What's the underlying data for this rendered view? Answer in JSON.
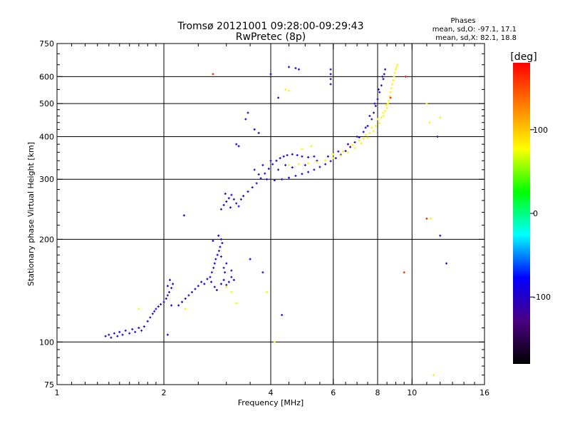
{
  "chart_data": {
    "type": "scatter",
    "title": "Tromsø 20121001 09:28:00-09:29:43",
    "subtitle": "RwPretec (8p)",
    "xlabel": "Frequency [MHz]",
    "ylabel": "Stationary phase Virtual Height [km]",
    "x_scale": "log",
    "y_scale": "log",
    "xlim": [
      1,
      16
    ],
    "ylim": [
      75,
      750
    ],
    "grid": true,
    "x_ticks": [
      1,
      2,
      4,
      6,
      8,
      10,
      16
    ],
    "x_tick_labels": [
      "1",
      "2",
      "4",
      "6",
      "8",
      "10",
      "16"
    ],
    "x_gridlines": [
      2,
      4,
      6,
      8,
      10
    ],
    "y_ticks": [
      75,
      100,
      200,
      300,
      400,
      500,
      600,
      750
    ],
    "y_tick_labels": [
      "75",
      "100",
      "200",
      "300",
      "400",
      "500",
      "600",
      "750"
    ],
    "y_gridlines": [
      100,
      200,
      300,
      400,
      500,
      600
    ],
    "stats": {
      "heading": "Phases",
      "o_line": "mean, sd,O: -97.1, 17.1",
      "x_line": "mean, sd,X:  82.1, 18.8"
    },
    "colorbar": {
      "label": "[deg]",
      "range": [
        -180,
        180
      ],
      "ticks": [
        -100,
        0,
        100
      ],
      "tick_labels": [
        "-100",
        "0",
        "100"
      ],
      "colors": [
        "#000000",
        "#4b0082",
        "#0000ff",
        "#00ffff",
        "#00ff00",
        "#ffff00",
        "#ff7f00",
        "#ff0000"
      ]
    },
    "series": [
      {
        "mode": "O",
        "color_phase": -97,
        "points": [
          [
            1.37,
            104
          ],
          [
            1.4,
            105
          ],
          [
            1.42,
            103
          ],
          [
            1.45,
            106
          ],
          [
            1.48,
            104
          ],
          [
            1.5,
            107
          ],
          [
            1.53,
            105
          ],
          [
            1.56,
            108
          ],
          [
            1.6,
            106
          ],
          [
            1.63,
            109
          ],
          [
            1.66,
            107
          ],
          [
            1.7,
            110
          ],
          [
            1.73,
            108
          ],
          [
            1.76,
            111
          ],
          [
            1.8,
            115
          ],
          [
            1.83,
            118
          ],
          [
            1.86,
            121
          ],
          [
            1.88,
            123
          ],
          [
            1.9,
            125
          ],
          [
            1.93,
            127
          ],
          [
            1.96,
            129
          ],
          [
            2.0,
            131
          ],
          [
            2.03,
            134
          ],
          [
            2.05,
            137
          ],
          [
            2.07,
            140
          ],
          [
            2.1,
            144
          ],
          [
            2.12,
            148
          ],
          [
            2.08,
            152
          ],
          [
            2.05,
            146
          ],
          [
            2.1,
            128
          ],
          [
            2.2,
            128
          ],
          [
            2.25,
            131
          ],
          [
            2.3,
            134
          ],
          [
            2.35,
            137
          ],
          [
            2.4,
            140
          ],
          [
            2.45,
            143
          ],
          [
            2.5,
            146
          ],
          [
            2.55,
            150
          ],
          [
            2.6,
            148
          ],
          [
            2.65,
            153
          ],
          [
            2.7,
            155
          ],
          [
            2.73,
            160
          ],
          [
            2.76,
            165
          ],
          [
            2.78,
            170
          ],
          [
            2.8,
            175
          ],
          [
            2.83,
            180
          ],
          [
            2.86,
            185
          ],
          [
            2.88,
            190
          ],
          [
            2.75,
            198
          ],
          [
            2.9,
            200
          ],
          [
            2.92,
            195
          ],
          [
            2.85,
            205
          ],
          [
            2.72,
            150
          ],
          [
            2.78,
            145
          ],
          [
            2.82,
            142
          ],
          [
            2.9,
            148
          ],
          [
            2.95,
            152
          ],
          [
            3.0,
            147
          ],
          [
            3.05,
            150
          ],
          [
            3.1,
            155
          ],
          [
            3.15,
            152
          ],
          [
            2.95,
            165
          ],
          [
            3.0,
            170
          ],
          [
            2.9,
            178
          ],
          [
            3.1,
            162
          ],
          [
            2.97,
            160
          ],
          [
            2.9,
            245
          ],
          [
            2.95,
            252
          ],
          [
            3.0,
            258
          ],
          [
            3.05,
            264
          ],
          [
            3.1,
            270
          ],
          [
            3.15,
            262
          ],
          [
            3.2,
            255
          ],
          [
            3.25,
            250
          ],
          [
            2.98,
            272
          ],
          [
            3.08,
            248
          ],
          [
            3.3,
            262
          ],
          [
            3.35,
            268
          ],
          [
            3.45,
            276
          ],
          [
            3.55,
            284
          ],
          [
            3.65,
            292
          ],
          [
            3.75,
            302
          ],
          [
            3.85,
            312
          ],
          [
            3.95,
            322
          ],
          [
            4.05,
            332
          ],
          [
            4.15,
            340
          ],
          [
            4.25,
            346
          ],
          [
            4.35,
            350
          ],
          [
            4.45,
            353
          ],
          [
            4.6,
            355
          ],
          [
            4.75,
            353
          ],
          [
            4.9,
            350
          ],
          [
            5.1,
            348
          ],
          [
            5.3,
            350
          ],
          [
            3.9,
            300
          ],
          [
            4.1,
            298
          ],
          [
            4.3,
            300
          ],
          [
            4.5,
            303
          ],
          [
            4.7,
            307
          ],
          [
            4.9,
            311
          ],
          [
            5.1,
            315
          ],
          [
            5.3,
            320
          ],
          [
            5.5,
            326
          ],
          [
            5.7,
            332
          ],
          [
            5.9,
            339
          ],
          [
            6.1,
            346
          ],
          [
            6.3,
            354
          ],
          [
            6.5,
            363
          ],
          [
            6.7,
            373
          ],
          [
            6.9,
            385
          ],
          [
            7.1,
            398
          ],
          [
            7.3,
            413
          ],
          [
            7.5,
            430
          ],
          [
            7.7,
            450
          ],
          [
            7.8,
            470
          ],
          [
            7.9,
            492
          ],
          [
            8.0,
            515
          ],
          [
            8.1,
            540
          ],
          [
            8.2,
            565
          ],
          [
            8.3,
            590
          ],
          [
            8.35,
            610
          ],
          [
            8.4,
            630
          ],
          [
            3.6,
            320
          ],
          [
            3.8,
            330
          ],
          [
            4.0,
            340
          ],
          [
            3.7,
            310
          ],
          [
            4.2,
            320
          ],
          [
            4.4,
            330
          ],
          [
            4.6,
            325
          ],
          [
            5.0,
            330
          ],
          [
            5.4,
            340
          ],
          [
            5.8,
            350
          ],
          [
            6.2,
            362
          ],
          [
            6.6,
            380
          ],
          [
            7.0,
            400
          ],
          [
            7.4,
            425
          ],
          [
            7.6,
            460
          ],
          [
            7.85,
            500
          ],
          [
            8.05,
            550
          ],
          [
            8.25,
            600
          ],
          [
            3.4,
            450
          ],
          [
            3.45,
            470
          ],
          [
            3.2,
            380
          ],
          [
            3.25,
            375
          ],
          [
            3.6,
            420
          ],
          [
            3.7,
            410
          ],
          [
            4.0,
            610
          ],
          [
            4.5,
            640
          ],
          [
            4.7,
            635
          ],
          [
            4.8,
            630
          ],
          [
            5.9,
            630
          ],
          [
            5.9,
            610
          ],
          [
            5.9,
            590
          ],
          [
            5.9,
            570
          ],
          [
            3.8,
            160
          ],
          [
            4.3,
            120
          ],
          [
            3.5,
            175
          ],
          [
            4.2,
            520
          ],
          [
            2.28,
            235
          ],
          [
            2.05,
            105
          ],
          [
            12.0,
            205
          ],
          [
            12.5,
            170
          ],
          [
            11.8,
            400
          ]
        ]
      },
      {
        "mode": "X",
        "color_phase": 82,
        "points": [
          [
            4.5,
            330
          ],
          [
            4.8,
            332
          ],
          [
            5.1,
            334
          ],
          [
            5.4,
            337
          ],
          [
            5.7,
            341
          ],
          [
            6.0,
            346
          ],
          [
            6.3,
            352
          ],
          [
            6.6,
            360
          ],
          [
            6.9,
            370
          ],
          [
            7.2,
            382
          ],
          [
            7.5,
            397
          ],
          [
            7.8,
            415
          ],
          [
            8.1,
            438
          ],
          [
            8.3,
            460
          ],
          [
            8.5,
            485
          ],
          [
            8.6,
            510
          ],
          [
            8.7,
            540
          ],
          [
            8.8,
            570
          ],
          [
            8.9,
            600
          ],
          [
            9.0,
            630
          ],
          [
            9.1,
            650
          ],
          [
            7.3,
            395
          ],
          [
            7.6,
            410
          ],
          [
            7.9,
            430
          ],
          [
            8.2,
            455
          ],
          [
            8.4,
            475
          ],
          [
            8.55,
            500
          ],
          [
            8.65,
            525
          ],
          [
            8.75,
            555
          ],
          [
            8.85,
            585
          ],
          [
            8.95,
            615
          ],
          [
            9.05,
            640
          ],
          [
            6.0,
            355
          ],
          [
            6.4,
            362
          ],
          [
            6.8,
            378
          ],
          [
            7.1,
            390
          ],
          [
            7.4,
            405
          ],
          [
            7.7,
            425
          ],
          [
            8.0,
            450
          ],
          [
            8.3,
            470
          ],
          [
            8.45,
            495
          ],
          [
            4.4,
            550
          ],
          [
            4.5,
            545
          ],
          [
            3.0,
            145
          ],
          [
            3.1,
            140
          ],
          [
            1.7,
            125
          ],
          [
            2.3,
            125
          ],
          [
            3.2,
            130
          ],
          [
            4.1,
            100
          ],
          [
            3.9,
            140
          ],
          [
            11.0,
            500
          ],
          [
            11.2,
            440
          ],
          [
            11.3,
            230
          ],
          [
            11.5,
            80
          ],
          [
            12.0,
            455
          ],
          [
            4.9,
            368
          ],
          [
            5.2,
            375
          ]
        ]
      },
      {
        "mode": "other",
        "color_phase": 170,
        "points": [
          [
            2.75,
            610
          ],
          [
            8.7,
            520
          ],
          [
            9.5,
            160
          ],
          [
            11.0,
            230
          ],
          [
            9.6,
            600
          ]
        ]
      }
    ]
  }
}
